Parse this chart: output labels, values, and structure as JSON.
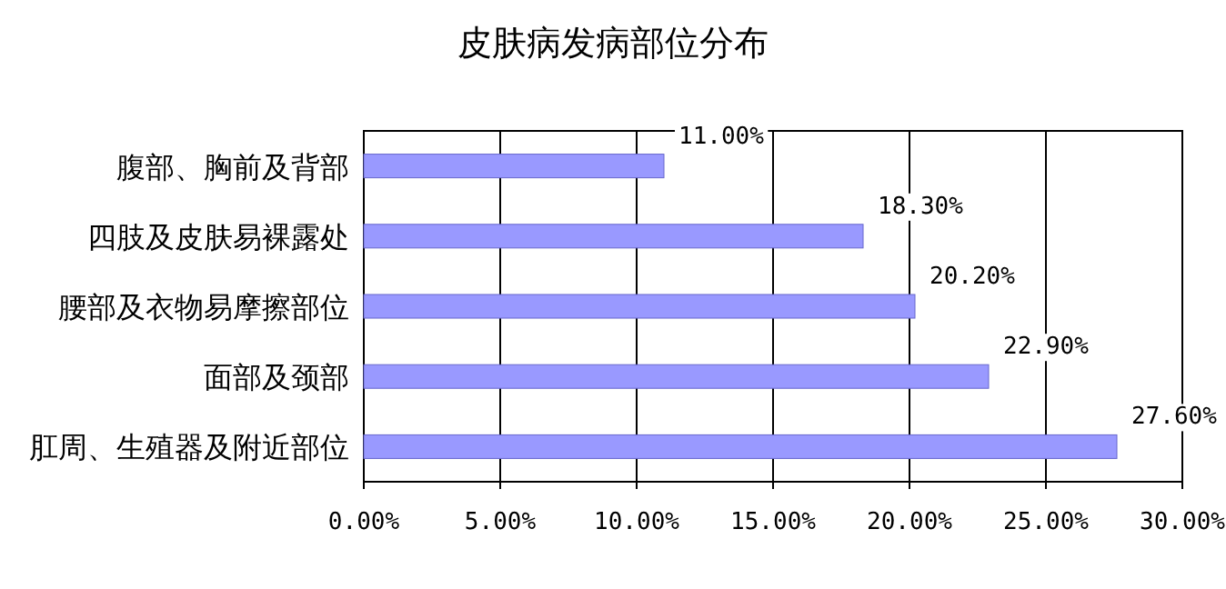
{
  "chart_data": {
    "type": "bar",
    "orientation": "horizontal",
    "title": "皮肤病发病部位分布",
    "categories": [
      "腹部、胸前及背部",
      "四肢及皮肤易裸露处",
      "腰部及衣物易摩擦部位",
      "面部及颈部",
      "肛周、生殖器及附近部位"
    ],
    "values": [
      11.0,
      18.3,
      20.2,
      22.9,
      27.6
    ],
    "value_labels": [
      "11.00%",
      "18.30%",
      "20.20%",
      "22.90%",
      "27.60%"
    ],
    "color": "#9999ff",
    "xlim": [
      0,
      30
    ],
    "xticks": [
      {
        "value": 0,
        "label": "0.00%"
      },
      {
        "value": 5,
        "label": "5.00%"
      },
      {
        "value": 10,
        "label": "10.00%"
      },
      {
        "value": 15,
        "label": "15.00%"
      },
      {
        "value": 20,
        "label": "20.00%"
      },
      {
        "value": 25,
        "label": "25.00%"
      },
      {
        "value": 30,
        "label": "30.00%"
      }
    ],
    "grid": "x"
  }
}
